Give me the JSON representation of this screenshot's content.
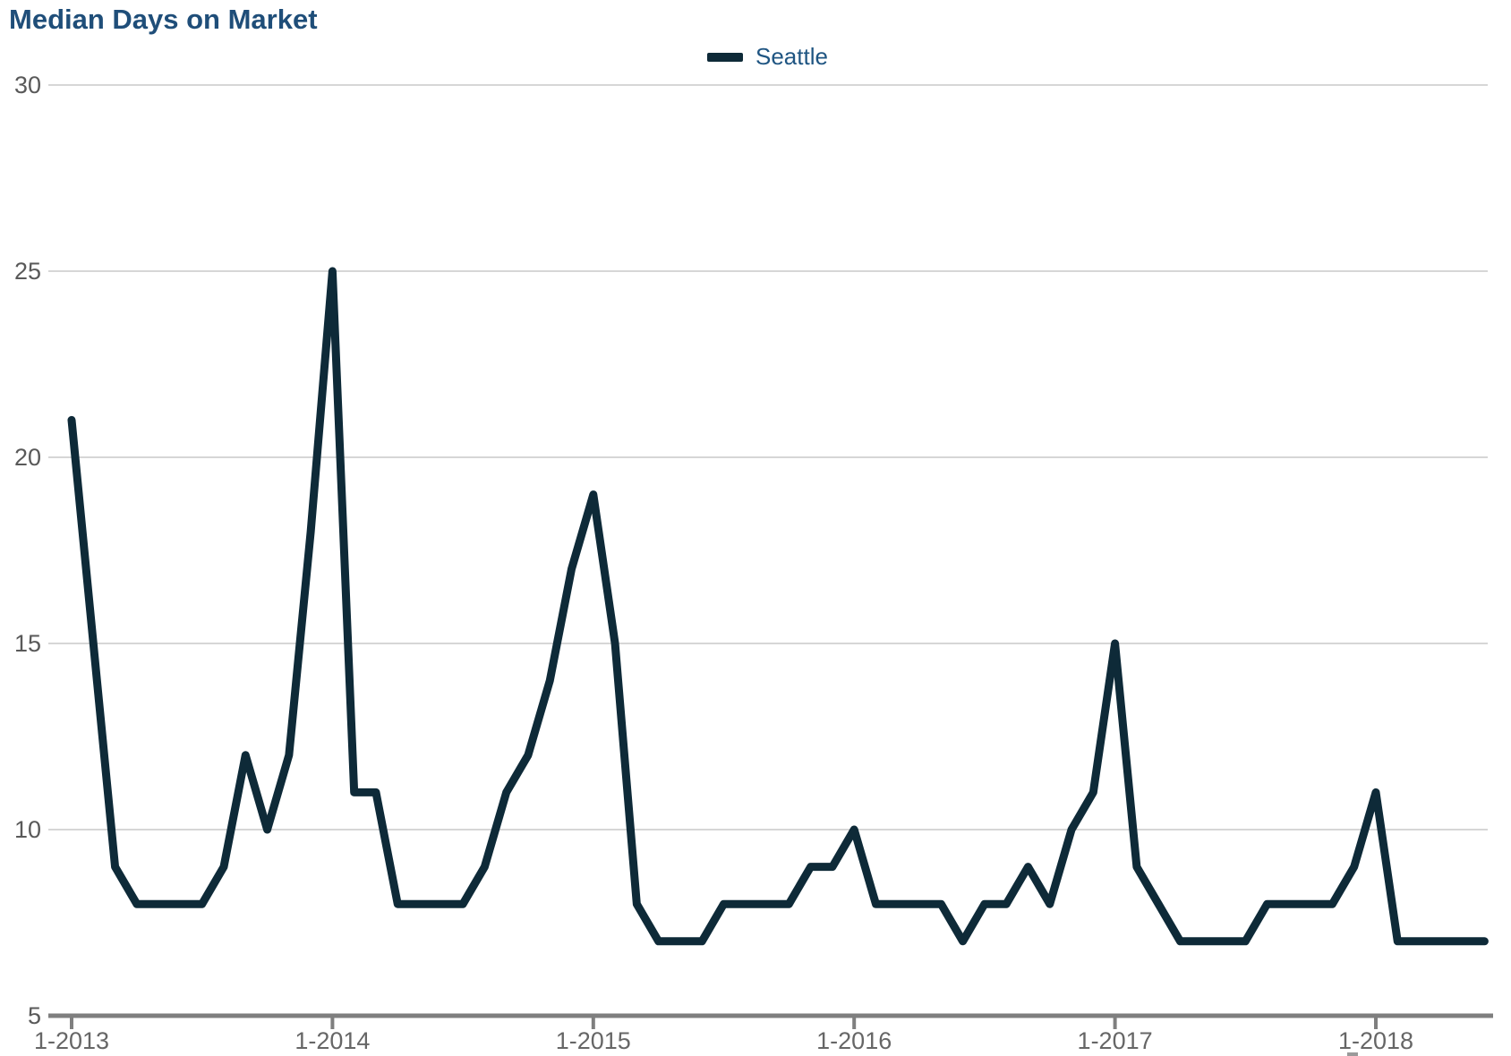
{
  "title": "Median Days on Market",
  "legend": {
    "series_label": "Seattle"
  },
  "colors": {
    "title": "#1f4e79",
    "legend_text": "#1f5582",
    "line": "#0e2a38",
    "gridline": "#c8c8c8",
    "axis": "#7f7f7f",
    "y_label": "#595959",
    "x_label": "#666666",
    "cropped_glyph": "#9a9a9a"
  },
  "chart_data": {
    "type": "line",
    "title": "Median Days on Market",
    "xlabel": "",
    "ylabel": "",
    "ylim": [
      5,
      30
    ],
    "y_ticks": [
      30,
      25,
      20,
      15,
      10,
      5
    ],
    "y_gridlines": [
      30,
      25,
      20,
      15,
      10
    ],
    "grid": "horizontal",
    "legend_position": "top-center",
    "x_tick_indices": [
      0,
      12,
      24,
      36,
      48,
      60
    ],
    "x_tick_labels": [
      "1-2013",
      "1-2014",
      "1-2015",
      "1-2016",
      "1-2017",
      "1-2018"
    ],
    "x": [
      "1-2013",
      "2-2013",
      "3-2013",
      "4-2013",
      "5-2013",
      "6-2013",
      "7-2013",
      "8-2013",
      "9-2013",
      "10-2013",
      "11-2013",
      "12-2013",
      "1-2014",
      "2-2014",
      "3-2014",
      "4-2014",
      "5-2014",
      "6-2014",
      "7-2014",
      "8-2014",
      "9-2014",
      "10-2014",
      "11-2014",
      "12-2014",
      "1-2015",
      "2-2015",
      "3-2015",
      "4-2015",
      "5-2015",
      "6-2015",
      "7-2015",
      "8-2015",
      "9-2015",
      "10-2015",
      "11-2015",
      "12-2015",
      "1-2016",
      "2-2016",
      "3-2016",
      "4-2016",
      "5-2016",
      "6-2016",
      "7-2016",
      "8-2016",
      "9-2016",
      "10-2016",
      "11-2016",
      "12-2016",
      "1-2017",
      "2-2017",
      "3-2017",
      "4-2017",
      "5-2017",
      "6-2017",
      "7-2017",
      "8-2017",
      "9-2017",
      "10-2017",
      "11-2017",
      "12-2017",
      "1-2018",
      "2-2018",
      "3-2018",
      "4-2018",
      "5-2018",
      "6-2018"
    ],
    "series": [
      {
        "name": "Seattle",
        "values": [
          21,
          15,
          9,
          8,
          8,
          8,
          8,
          9,
          12,
          10,
          12,
          18,
          25,
          11,
          11,
          8,
          8,
          8,
          8,
          9,
          11,
          12,
          14,
          17,
          19,
          15,
          8,
          7,
          7,
          7,
          8,
          8,
          8,
          8,
          9,
          9,
          10,
          8,
          8,
          8,
          8,
          7,
          8,
          8,
          9,
          8,
          10,
          11,
          15,
          9,
          8,
          7,
          7,
          7,
          7,
          8,
          8,
          8,
          8,
          9,
          11,
          7,
          7,
          7,
          7,
          7
        ]
      }
    ]
  }
}
